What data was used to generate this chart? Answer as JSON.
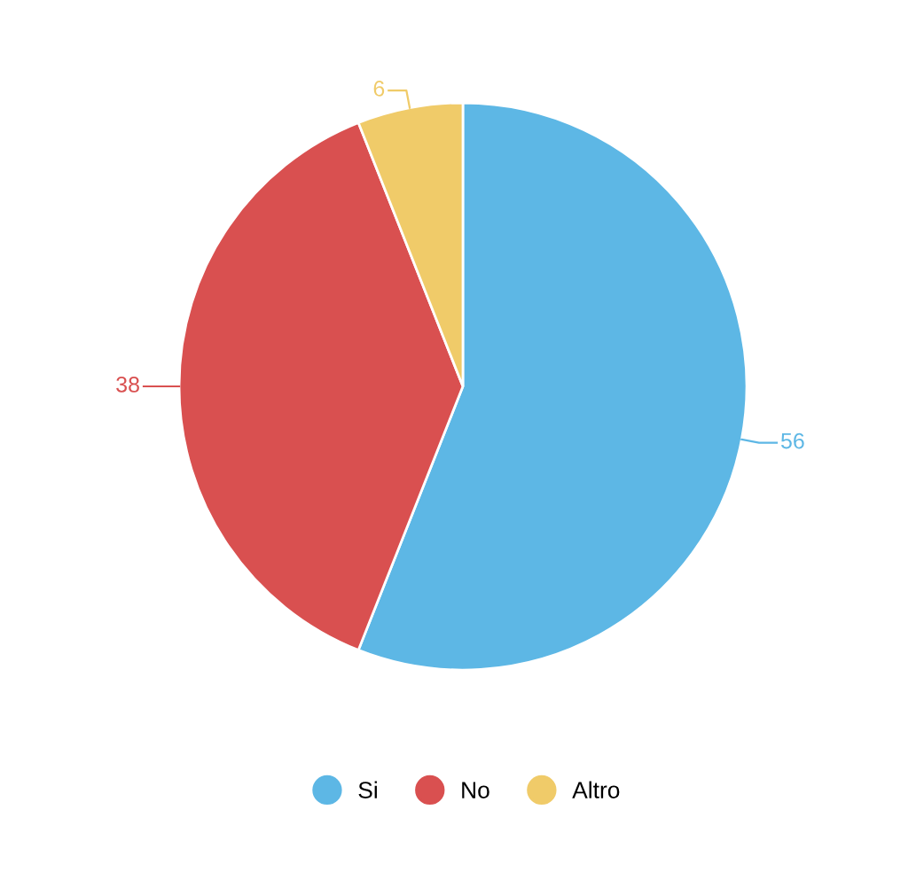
{
  "chart_data": {
    "type": "pie",
    "categories": [
      "Si",
      "No",
      "Altro"
    ],
    "values": [
      56,
      38,
      6
    ],
    "colors": [
      "#5db7e5",
      "#d95050",
      "#f0cb69"
    ],
    "data_labels": true,
    "legend": "bottom"
  }
}
